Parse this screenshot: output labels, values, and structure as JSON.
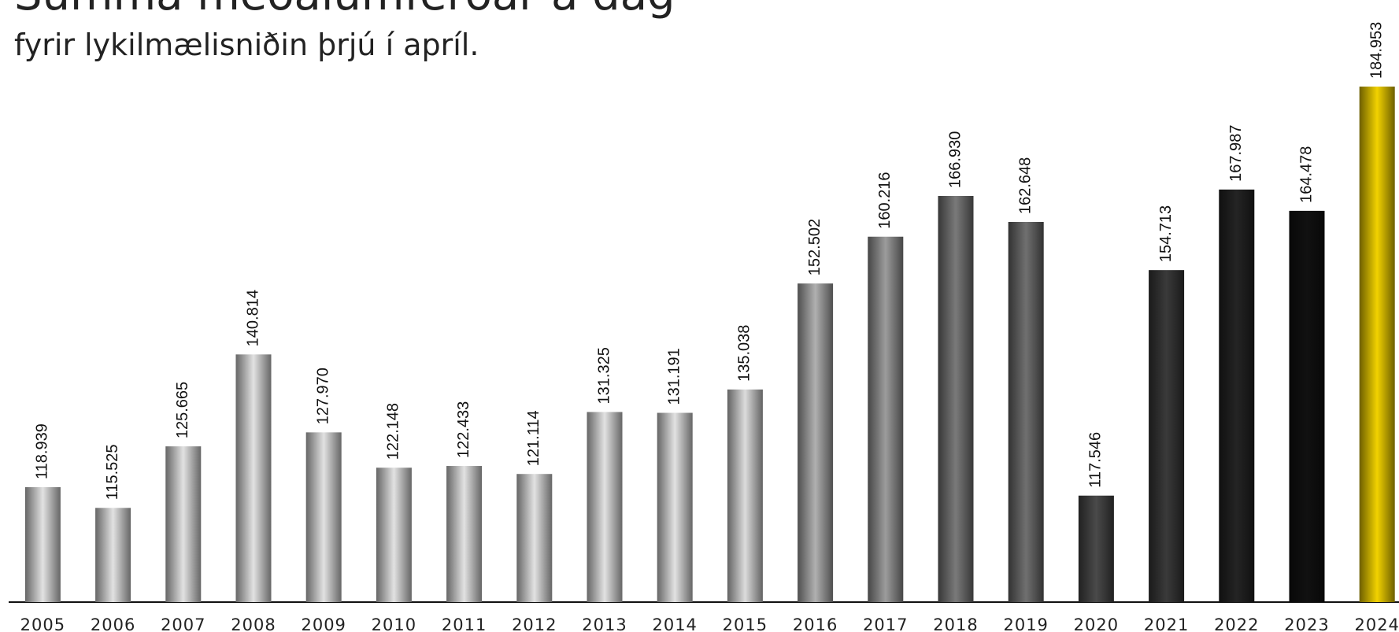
{
  "chart_data": {
    "type": "bar",
    "title": "Summa meðalumferðar á dag",
    "subtitle": "fyrir lykilmælisniðin þrjú í apríl.",
    "categories": [
      "2005",
      "2006",
      "2007",
      "2008",
      "2009",
      "2010",
      "2011",
      "2012",
      "2013",
      "2014",
      "2015",
      "2016",
      "2017",
      "2018",
      "2019",
      "2020",
      "2021",
      "2022",
      "2023",
      "2024"
    ],
    "values": [
      118939,
      115525,
      125665,
      140814,
      127970,
      122148,
      122433,
      121114,
      131325,
      131191,
      135038,
      152502,
      160216,
      166930,
      162648,
      117546,
      154713,
      167987,
      164478,
      184953
    ],
    "value_labels": [
      "118.939",
      "115.525",
      "125.665",
      "140.814",
      "127.970",
      "122.148",
      "122.433",
      "121.114",
      "131.325",
      "131.191",
      "135.038",
      "152.502",
      "160.216",
      "166.930",
      "162.648",
      "117.546",
      "154.713",
      "167.987",
      "164.478",
      "184.953"
    ],
    "colors": [
      "#e2e2e2",
      "#e2e2e2",
      "#e2e2e2",
      "#e2e2e2",
      "#e2e2e2",
      "#e2e2e2",
      "#e2e2e2",
      "#e2e2e2",
      "#e2e2e2",
      "#e2e2e2",
      "#dcdcdc",
      "#b0b0b0",
      "#9c9c9c",
      "#7a7a7a",
      "#707070",
      "#4a4a4a",
      "#3a3a3a",
      "#242424",
      "#111111",
      "#f2d200"
    ],
    "ylim": [
      100000,
      200000
    ]
  }
}
